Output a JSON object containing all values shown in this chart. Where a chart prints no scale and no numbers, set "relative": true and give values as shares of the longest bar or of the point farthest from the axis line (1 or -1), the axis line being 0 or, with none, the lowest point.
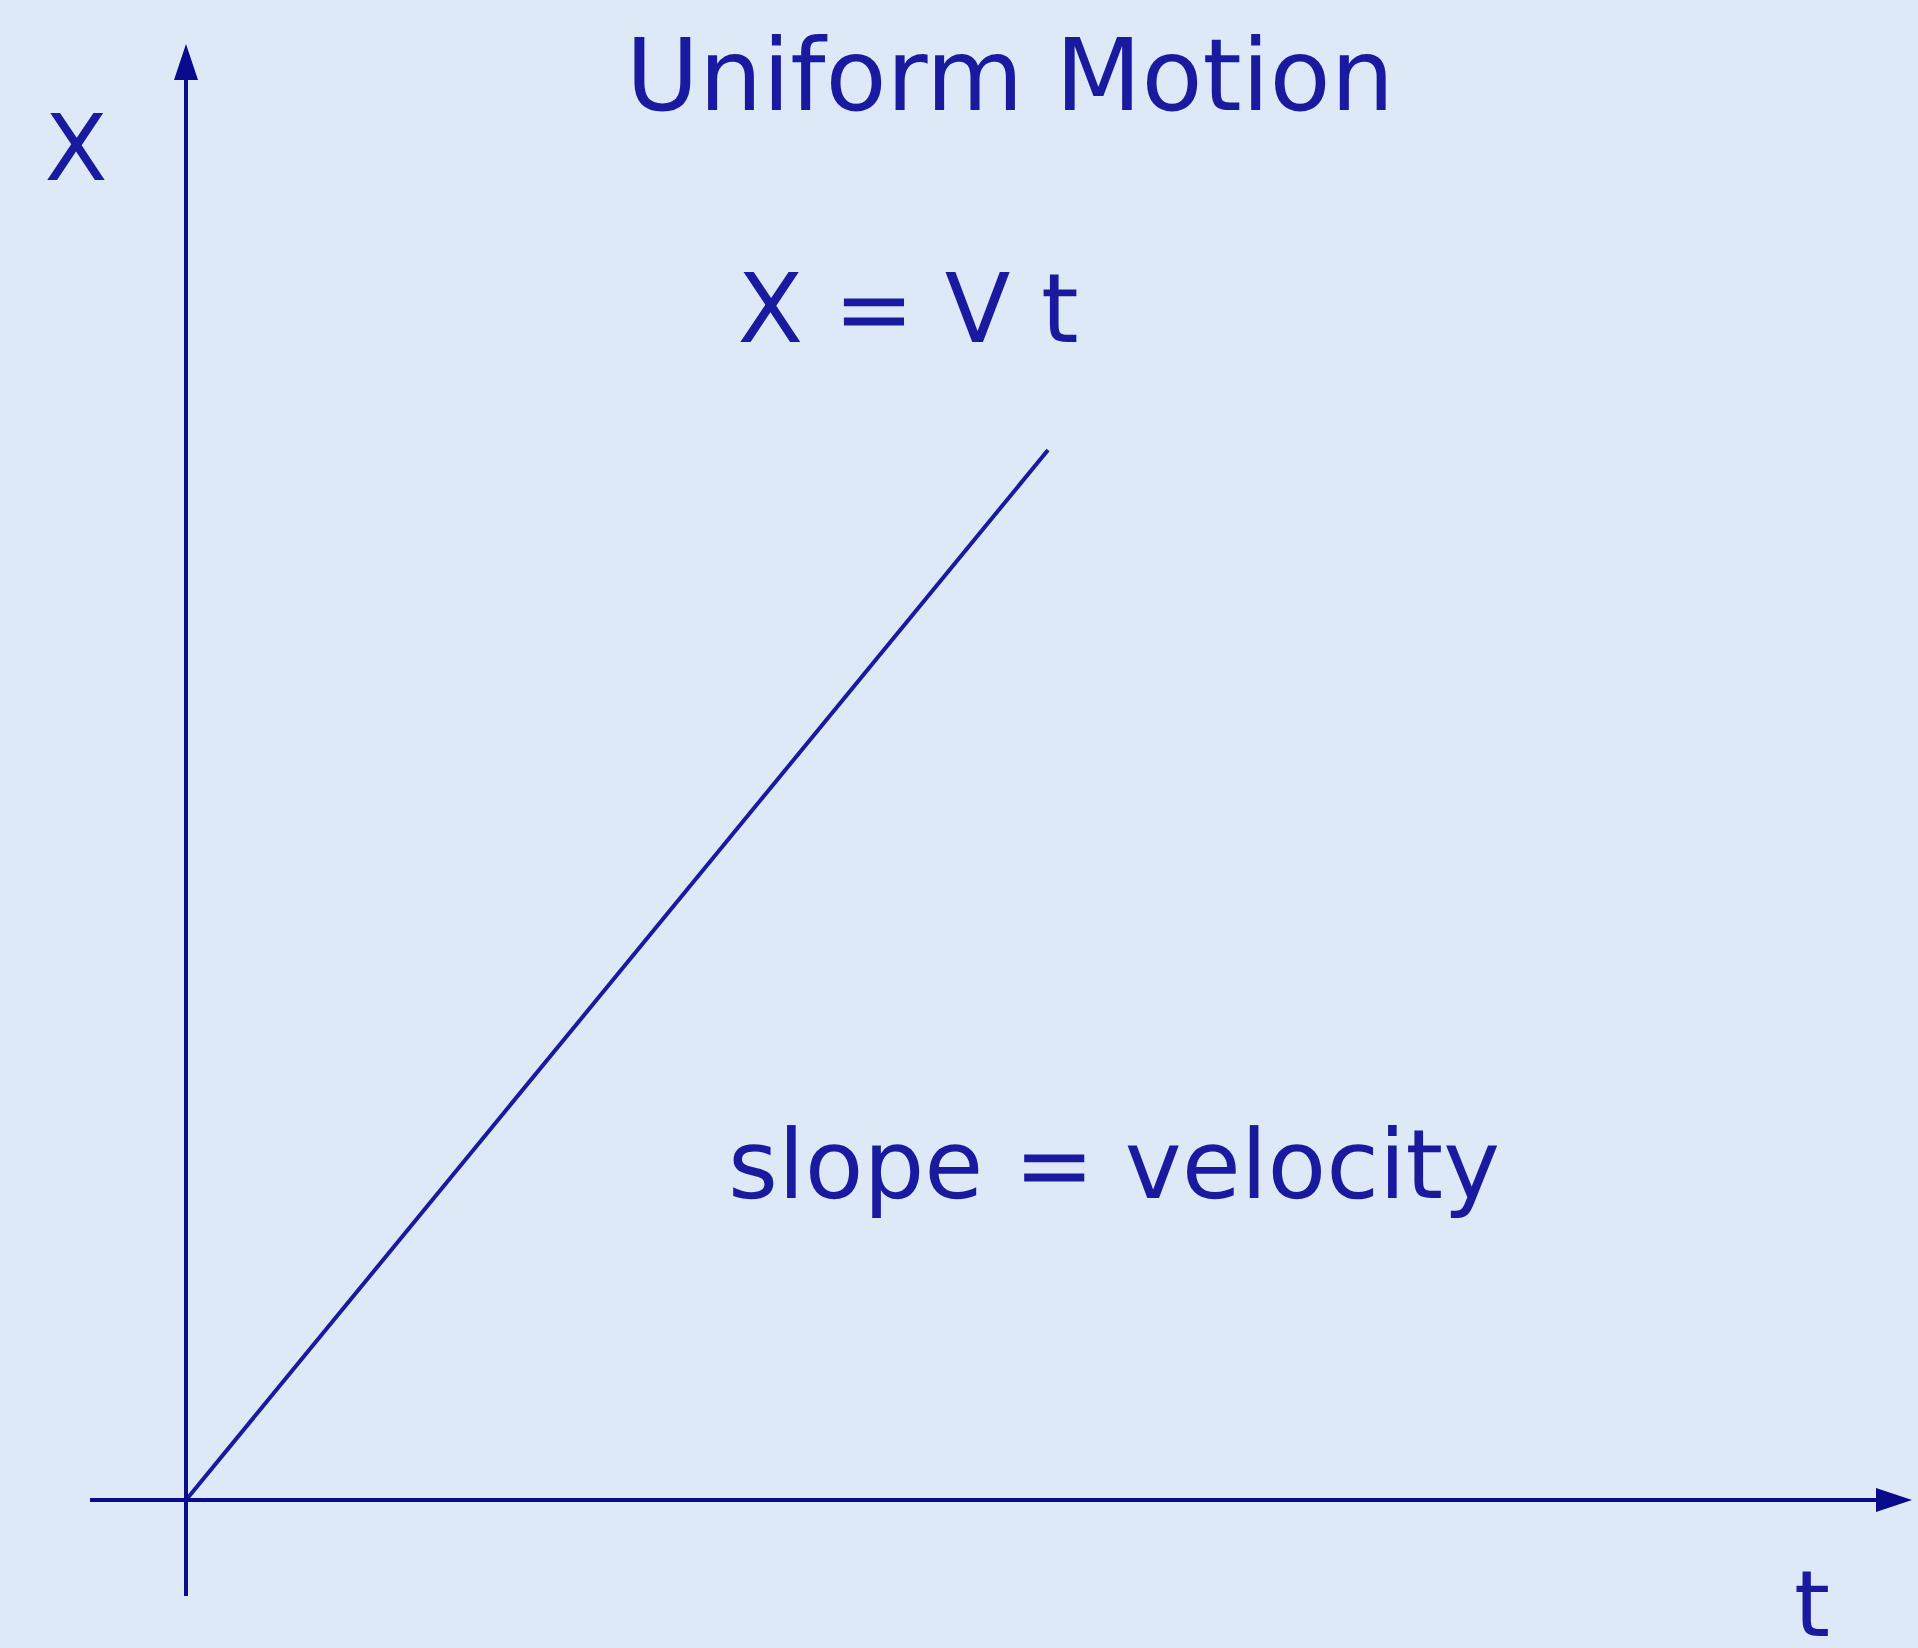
{
  "chart_data": {
    "type": "line",
    "title": "Uniform Motion",
    "xlabel": "t",
    "ylabel": "X",
    "relative": true,
    "categories": [
      null,
      null
    ],
    "series": [
      {
        "color": "#1a1aa0",
        "values": [
          0,
          1
        ]
      }
    ],
    "annotations": [
      "X = V t",
      "slope = velocity"
    ],
    "line_style": "solid"
  }
}
